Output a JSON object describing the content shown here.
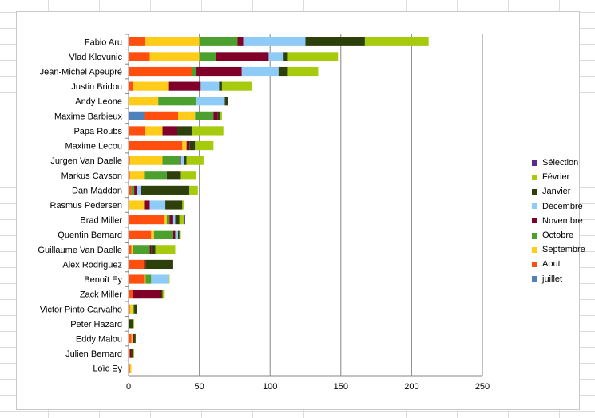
{
  "chart_data": {
    "type": "bar",
    "orientation": "horizontal",
    "stacked": true,
    "title": "",
    "xlabel": "",
    "ylabel": "",
    "xlim": [
      0,
      250
    ],
    "x_ticks": [
      0,
      50,
      100,
      150,
      200,
      250
    ],
    "grid": "vertical major",
    "legend_position": "right",
    "categories": [
      "Fabio Aru",
      "Vlad Klovunic",
      "Jean-Michel Apeupré",
      "Justin Bridou",
      "Andy Leone",
      "Maxime Barbieux",
      "Papa Roubs",
      "Maxime Lecou",
      "Jurgen Van Daelle",
      "Markus Cavson",
      "Dan Maddon",
      "Rasmus Pedersen",
      "Brad Miller",
      "Quentin Bernard",
      "Guillaume Van Daelle",
      "Alex Rodriguez",
      "Benoît Ey",
      "Zack Miller",
      "Victor Pinto Carvalho",
      "Peter Hazard",
      "Eddy Malou",
      "Julien Bernard",
      "Loïc Ey"
    ],
    "series": [
      {
        "name": "juillet",
        "color": "#4f81bd",
        "values": [
          0,
          0,
          0,
          0,
          0,
          11,
          0,
          0,
          0,
          0,
          0,
          0,
          0,
          0,
          0,
          0,
          0,
          0,
          0,
          0,
          0,
          0,
          0
        ]
      },
      {
        "name": "Aout",
        "color": "#ff4f0f",
        "values": [
          12,
          15,
          45,
          3,
          0,
          24,
          12,
          38,
          1,
          1,
          2,
          0,
          25,
          16,
          2,
          11,
          11,
          3,
          1,
          0,
          2,
          1,
          1
        ]
      },
      {
        "name": "Septembre",
        "color": "#ffcc1a",
        "values": [
          38,
          35,
          0,
          25,
          21,
          12,
          12,
          3,
          23,
          10,
          0,
          11,
          2,
          2,
          1,
          0,
          1,
          0,
          2,
          0,
          1,
          0,
          1
        ]
      },
      {
        "name": "Octobre",
        "color": "#4ca12e",
        "values": [
          27,
          12,
          3,
          0,
          27,
          13,
          0,
          0,
          12,
          16,
          2,
          0,
          2,
          13,
          12,
          0,
          4,
          0,
          1,
          0,
          0,
          0,
          0
        ]
      },
      {
        "name": "Novembre",
        "color": "#80002a",
        "values": [
          4,
          37,
          32,
          23,
          0,
          3,
          10,
          2,
          1,
          0,
          2,
          4,
          2,
          2,
          1,
          1,
          0,
          20,
          0,
          0,
          1,
          1,
          0
        ]
      },
      {
        "name": "Décembre",
        "color": "#8fcbf7",
        "values": [
          44,
          10,
          26,
          13,
          20,
          0,
          0,
          0,
          2,
          0,
          3,
          11,
          2,
          2,
          0,
          0,
          12,
          0,
          0,
          0,
          0,
          0,
          0
        ]
      },
      {
        "name": "Janvier",
        "color": "#2d3f0a",
        "values": [
          42,
          3,
          6,
          2,
          2,
          2,
          11,
          4,
          2,
          10,
          34,
          12,
          3,
          1,
          3,
          19,
          0,
          1,
          2,
          3,
          1,
          1,
          0
        ]
      },
      {
        "name": "Février",
        "color": "#a6cb0d",
        "values": [
          45,
          36,
          22,
          21,
          0,
          1,
          22,
          13,
          12,
          11,
          6,
          1,
          3,
          1,
          14,
          0,
          1,
          1,
          0,
          1,
          0,
          1,
          0
        ]
      },
      {
        "name": "Sélection",
        "color": "#5b2a8a",
        "values": [
          0,
          0,
          0,
          0,
          0,
          0,
          0,
          0,
          0,
          0,
          0,
          0,
          1,
          0,
          0,
          0,
          0,
          0,
          0,
          0,
          0,
          0,
          0
        ]
      }
    ],
    "legend_order": [
      "Sélection",
      "Février",
      "Janvier",
      "Décembre",
      "Novembre",
      "Octobre",
      "Septembre",
      "Aout",
      "juillet"
    ]
  }
}
